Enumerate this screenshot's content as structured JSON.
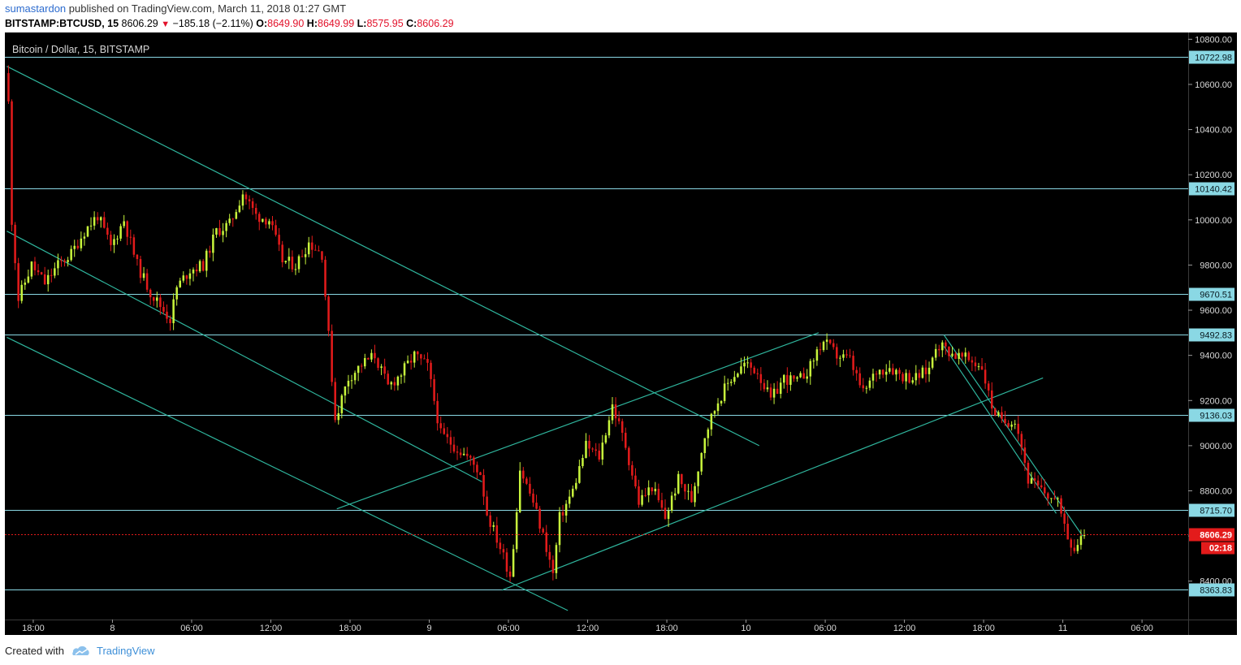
{
  "header": {
    "author": "sumastardon",
    "published_text": " published on TradingView.com, March 11, 2018 01:27 GMT",
    "symbol": "BITSTAMP:BTCUSD, 15",
    "last": "8606.29",
    "change": "−185.18 (−2.11%)",
    "o_label": "O:",
    "o": "8649.90",
    "h_label": "H:",
    "h": "8649.99",
    "l_label": "L:",
    "l": "8575.95",
    "c_label": "C:",
    "c": "8606.29"
  },
  "footer": {
    "created_with": "Created with",
    "brand": "TradingView"
  },
  "colors": {
    "bg": "#000000",
    "up": "#c8f53c",
    "down": "#e31b1b",
    "hline": "#8ad8e4",
    "trend": "#2fb59d",
    "current": "#e31b1b"
  },
  "chart_data": {
    "type": "candlestick",
    "title": "Bitcoin / Dollar, 15, BITSTAMP",
    "ylim": [
      8230,
      10830
    ],
    "y_ticks": [
      10800,
      10600,
      10400,
      10200,
      10000,
      9800,
      9600,
      9400,
      9200,
      9000,
      8800,
      8600,
      8400
    ],
    "y_tick_labels": [
      "10800.00",
      "10600.00",
      "10400.00",
      "10200.00",
      "10000.00",
      "9800.00",
      "9600.00",
      "9400.00",
      "9200.00",
      "9000.00",
      "8800.00",
      "8600.00",
      "8400.00"
    ],
    "x_ticks": [
      {
        "t": 2,
        "label": "18:00"
      },
      {
        "t": 8,
        "label": "8"
      },
      {
        "t": 14,
        "label": "06:00"
      },
      {
        "t": 20,
        "label": "12:00"
      },
      {
        "t": 26,
        "label": "18:00"
      },
      {
        "t": 32,
        "label": "9"
      },
      {
        "t": 38,
        "label": "06:00"
      },
      {
        "t": 44,
        "label": "12:00"
      },
      {
        "t": 50,
        "label": "18:00"
      },
      {
        "t": 56,
        "label": "10"
      },
      {
        "t": 62,
        "label": "06:00"
      },
      {
        "t": 68,
        "label": "12:00"
      },
      {
        "t": 74,
        "label": "18:00"
      },
      {
        "t": 80,
        "label": "11"
      },
      {
        "t": 86,
        "label": "06:00"
      }
    ],
    "xlim": [
      -0.15,
      89.5
    ],
    "x_unit": "hours since 2018-03-07 16:00 GMT",
    "horizontal_levels": [
      10722.98,
      10140.42,
      9670.51,
      9492.83,
      9136.03,
      8715.7,
      8363.83
    ],
    "horizontal_level_labels": [
      "10722.98",
      "10140.42",
      "9670.51",
      "9492.83",
      "9136.03",
      "8715.70",
      "8363.83"
    ],
    "current_price": 8606.29,
    "current_price_label": "8606.29",
    "countdown": "02:18",
    "trend_lines": [
      {
        "from": [
          0,
          10680
        ],
        "to": [
          57,
          9000
        ]
      },
      {
        "from": [
          0,
          9950
        ],
        "to": [
          36,
          8840
        ]
      },
      {
        "from": [
          0,
          9480
        ],
        "to": [
          42.5,
          8270
        ]
      },
      {
        "from": [
          25,
          8720
        ],
        "to": [
          61.5,
          9500
        ]
      },
      {
        "from": [
          37.5,
          8360
        ],
        "to": [
          78.5,
          9300
        ]
      },
      {
        "from": [
          71,
          9490
        ],
        "to": [
          81.5,
          8600
        ]
      },
      {
        "from": [
          71,
          9440
        ],
        "to": [
          79.5,
          8700
        ]
      }
    ],
    "price_path": [
      [
        0,
        10650
      ],
      [
        0.2,
        10620
      ],
      [
        0.5,
        10000
      ],
      [
        1,
        9650
      ],
      [
        2,
        9800
      ],
      [
        3,
        9720
      ],
      [
        4,
        9800
      ],
      [
        5,
        9850
      ],
      [
        6,
        9950
      ],
      [
        7,
        10020
      ],
      [
        8,
        9880
      ],
      [
        9,
        10000
      ],
      [
        10,
        9800
      ],
      [
        11,
        9680
      ],
      [
        12,
        9600
      ],
      [
        12.5,
        9560
      ],
      [
        13,
        9700
      ],
      [
        14,
        9780
      ],
      [
        15,
        9800
      ],
      [
        16,
        9950
      ],
      [
        17,
        9980
      ],
      [
        18,
        10120
      ],
      [
        19,
        10020
      ],
      [
        20,
        10000
      ],
      [
        21,
        9820
      ],
      [
        22,
        9800
      ],
      [
        23,
        9900
      ],
      [
        24,
        9850
      ],
      [
        25,
        9120
      ],
      [
        26,
        9300
      ],
      [
        27,
        9360
      ],
      [
        28,
        9400
      ],
      [
        29,
        9260
      ],
      [
        30,
        9320
      ],
      [
        31,
        9400
      ],
      [
        32,
        9350
      ],
      [
        33,
        9050
      ],
      [
        34,
        9000
      ],
      [
        35,
        8950
      ],
      [
        36,
        8880
      ],
      [
        36.5,
        8700
      ],
      [
        37.5,
        8550
      ],
      [
        38.3,
        8420
      ],
      [
        39,
        8900
      ],
      [
        40,
        8750
      ],
      [
        41,
        8550
      ],
      [
        41.5,
        8430
      ],
      [
        42,
        8680
      ],
      [
        43,
        8800
      ],
      [
        44,
        9000
      ],
      [
        45,
        8950
      ],
      [
        46,
        9180
      ],
      [
        47,
        9000
      ],
      [
        48,
        8750
      ],
      [
        49,
        8820
      ],
      [
        50,
        8680
      ],
      [
        51,
        8850
      ],
      [
        52,
        8760
      ],
      [
        53,
        9050
      ],
      [
        54,
        9200
      ],
      [
        55,
        9300
      ],
      [
        56,
        9360
      ],
      [
        57,
        9330
      ],
      [
        58,
        9200
      ],
      [
        59,
        9300
      ],
      [
        60,
        9280
      ],
      [
        61,
        9350
      ],
      [
        61.5,
        9420
      ],
      [
        62,
        9460
      ],
      [
        63,
        9400
      ],
      [
        64,
        9380
      ],
      [
        65,
        9230
      ],
      [
        66,
        9330
      ],
      [
        67,
        9350
      ],
      [
        68,
        9310
      ],
      [
        69,
        9300
      ],
      [
        70,
        9340
      ],
      [
        70.5,
        9450
      ],
      [
        71,
        9440
      ],
      [
        72,
        9400
      ],
      [
        73,
        9380
      ],
      [
        74,
        9350
      ],
      [
        74.7,
        9180
      ],
      [
        75.5,
        9100
      ],
      [
        76.5,
        9120
      ],
      [
        77,
        9000
      ],
      [
        77.5,
        8850
      ],
      [
        78.5,
        8800
      ],
      [
        79.5,
        8760
      ],
      [
        80,
        8720
      ],
      [
        80.5,
        8600
      ],
      [
        81,
        8550
      ],
      [
        81.5,
        8606
      ]
    ]
  }
}
